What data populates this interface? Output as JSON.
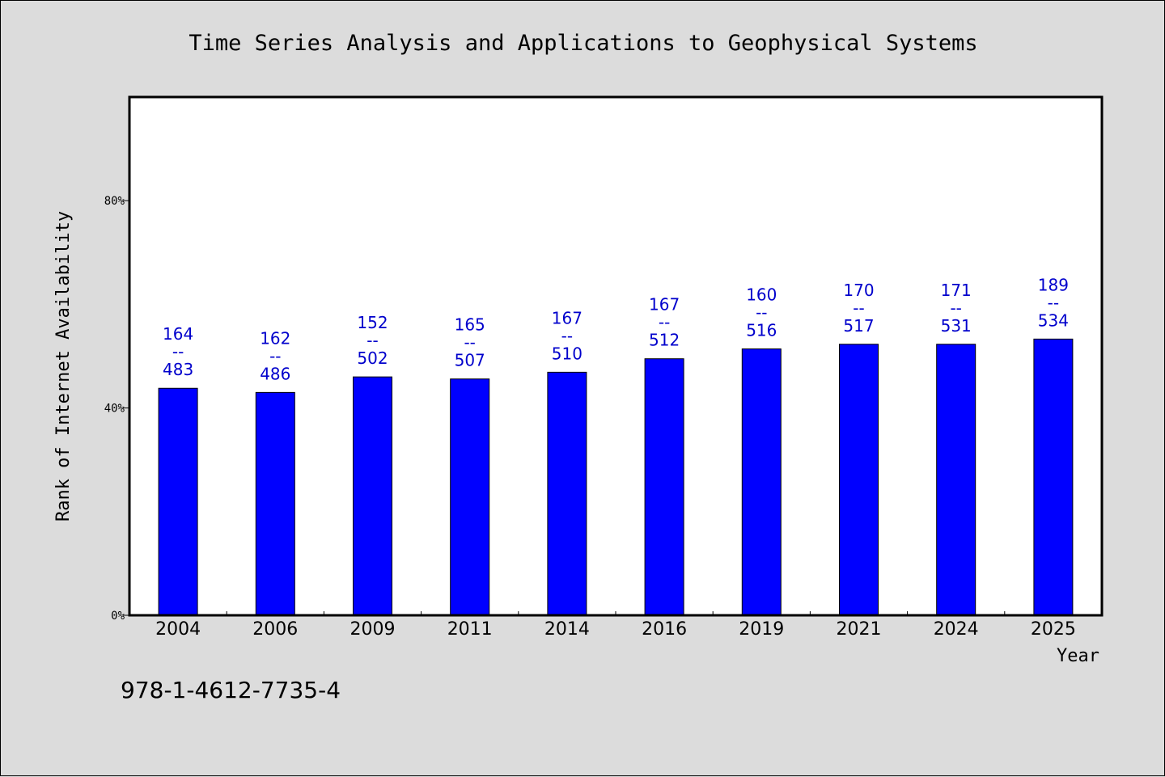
{
  "chart_data": {
    "type": "bar",
    "title": "Time Series Analysis and Applications to Geophysical Systems",
    "xlabel": "Year",
    "ylabel": "Rank of Internet Availability",
    "categories": [
      "2004",
      "2006",
      "2009",
      "2011",
      "2014",
      "2016",
      "2019",
      "2021",
      "2024",
      "2025"
    ],
    "values": [
      43.8,
      43.0,
      46.0,
      45.6,
      46.9,
      49.5,
      51.4,
      52.3,
      52.3,
      53.3
    ],
    "data_labels": [
      [
        "164",
        "--",
        "483"
      ],
      [
        "162",
        "--",
        "486"
      ],
      [
        "152",
        "--",
        "502"
      ],
      [
        "165",
        "--",
        "507"
      ],
      [
        "167",
        "--",
        "510"
      ],
      [
        "167",
        "--",
        "512"
      ],
      [
        "160",
        "--",
        "516"
      ],
      [
        "170",
        "--",
        "517"
      ],
      [
        "171",
        "--",
        "531"
      ],
      [
        "189",
        "--",
        "534"
      ]
    ],
    "ylim": [
      0,
      100
    ],
    "yticks": [
      0,
      40,
      80
    ],
    "ytick_labels": [
      "0%",
      "40%",
      "80%"
    ],
    "grid": false,
    "colors": {
      "bar": "#0000ff",
      "label": "#0000cc",
      "background": "#dcdcdc",
      "plot_background": "#ffffff"
    }
  },
  "footer": {
    "isbn": "978-1-4612-7735-4"
  }
}
